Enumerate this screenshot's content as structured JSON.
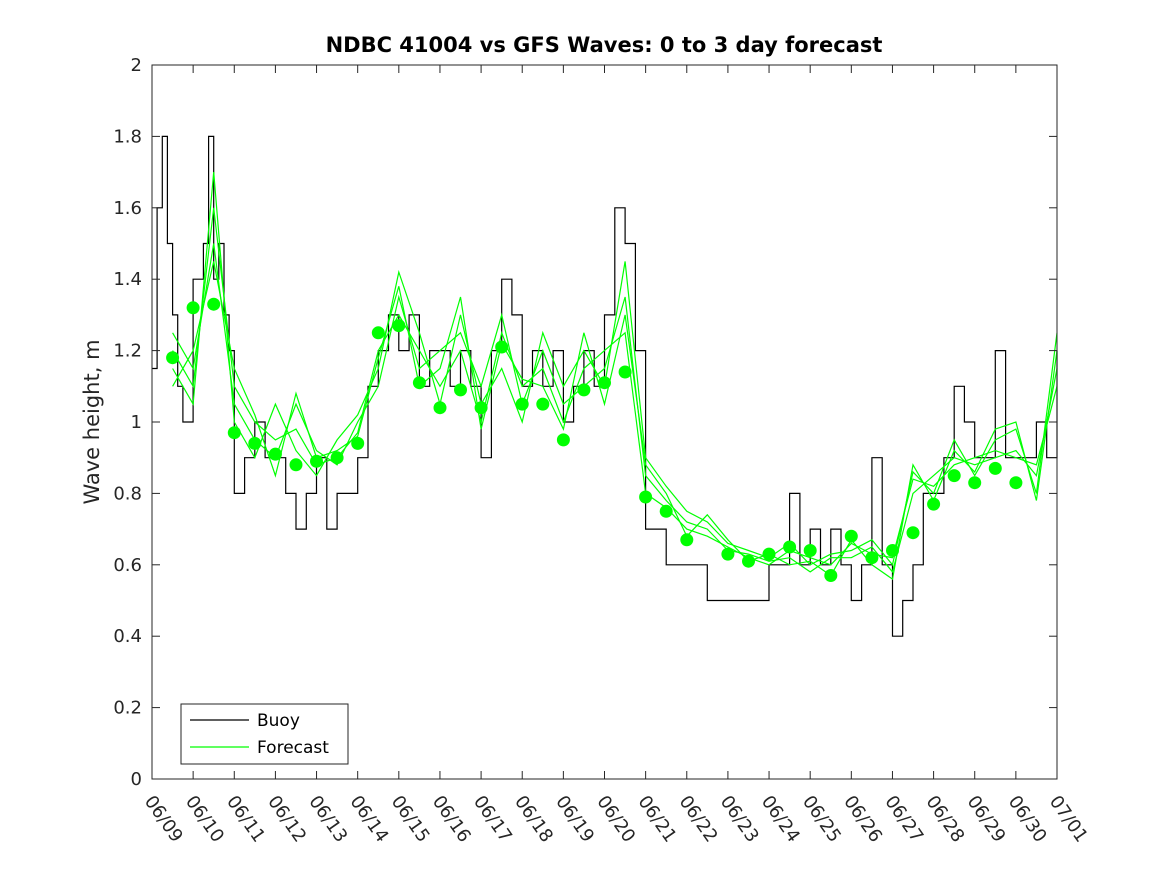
{
  "chart_data": {
    "type": "line",
    "title": "NDBC 41004 vs GFS Waves: 0 to 3 day forecast",
    "xlabel": "",
    "ylabel": "Wave height, m",
    "xlim": [
      "06/09",
      "07/01"
    ],
    "ylim": [
      0,
      2
    ],
    "x_tick_labels": [
      "06/09",
      "06/10",
      "06/11",
      "06/12",
      "06/13",
      "06/14",
      "06/15",
      "06/16",
      "06/17",
      "06/18",
      "06/19",
      "06/20",
      "06/21",
      "06/22",
      "06/23",
      "06/24",
      "06/25",
      "06/26",
      "06/27",
      "06/28",
      "06/29",
      "06/30",
      "07/01"
    ],
    "y_tick_labels": [
      "0",
      "0.2",
      "0.4",
      "0.6",
      "0.8",
      "1",
      "1.2",
      "1.4",
      "1.6",
      "1.8",
      "2"
    ],
    "grid": false,
    "legend": {
      "position": "bottom-left",
      "entries": [
        "Buoy",
        "Forecast"
      ]
    },
    "colors": {
      "buoy": "#000000",
      "forecast": "#00ff00"
    },
    "series": [
      {
        "name": "Buoy",
        "style": "step-line",
        "x": [
          "06/09 00:00",
          "06/09 03:00",
          "06/09 06:00",
          "06/09 09:00",
          "06/09 12:00",
          "06/09 15:00",
          "06/09 18:00",
          "06/10 00:00",
          "06/10 06:00",
          "06/10 09:00",
          "06/10 12:00",
          "06/10 15:00",
          "06/10 18:00",
          "06/10 21:00",
          "06/11 00:00",
          "06/11 06:00",
          "06/11 12:00",
          "06/11 18:00",
          "06/12 00:00",
          "06/12 06:00",
          "06/12 12:00",
          "06/12 18:00",
          "06/13 00:00",
          "06/13 06:00",
          "06/13 12:00",
          "06/13 18:00",
          "06/14 00:00",
          "06/14 06:00",
          "06/14 12:00",
          "06/14 18:00",
          "06/15 00:00",
          "06/15 06:00",
          "06/15 12:00",
          "06/15 18:00",
          "06/16 00:00",
          "06/16 06:00",
          "06/16 12:00",
          "06/16 18:00",
          "06/17 00:00",
          "06/17 06:00",
          "06/17 12:00",
          "06/17 18:00",
          "06/18 00:00",
          "06/18 06:00",
          "06/18 12:00",
          "06/18 18:00",
          "06/19 00:00",
          "06/19 06:00",
          "06/19 12:00",
          "06/19 18:00",
          "06/20 00:00",
          "06/20 06:00",
          "06/20 12:00",
          "06/20 18:00",
          "06/21 00:00",
          "06/21 06:00",
          "06/21 12:00",
          "06/21 18:00",
          "06/22 00:00",
          "06/22 06:00",
          "06/22 12:00",
          "06/22 18:00",
          "06/23 00:00",
          "06/23 06:00",
          "06/23 12:00",
          "06/23 18:00",
          "06/24 00:00",
          "06/24 06:00",
          "06/24 12:00",
          "06/24 18:00",
          "06/25 00:00",
          "06/25 06:00",
          "06/25 12:00",
          "06/25 18:00",
          "06/26 00:00",
          "06/26 06:00",
          "06/26 12:00",
          "06/26 18:00",
          "06/27 00:00",
          "06/27 06:00",
          "06/27 12:00",
          "06/27 18:00",
          "06/28 00:00",
          "06/28 06:00",
          "06/28 12:00",
          "06/28 18:00",
          "06/29 00:00",
          "06/29 06:00",
          "06/29 12:00",
          "06/29 18:00",
          "06/30 00:00",
          "06/30 06:00",
          "06/30 12:00",
          "06/30 18:00",
          "07/01 00:00"
        ],
        "values": [
          1.15,
          1.6,
          1.8,
          1.5,
          1.3,
          1.1,
          1.0,
          1.4,
          1.5,
          1.8,
          1.4,
          1.5,
          1.3,
          1.2,
          0.8,
          0.9,
          1.0,
          0.9,
          0.9,
          0.8,
          0.7,
          0.8,
          0.9,
          0.7,
          0.8,
          0.8,
          0.9,
          1.1,
          1.2,
          1.3,
          1.2,
          1.3,
          1.1,
          1.2,
          1.2,
          1.1,
          1.2,
          1.1,
          0.9,
          1.2,
          1.4,
          1.3,
          1.1,
          1.2,
          1.1,
          1.2,
          1.0,
          1.1,
          1.2,
          1.1,
          1.3,
          1.6,
          1.5,
          1.2,
          0.7,
          0.7,
          0.6,
          0.6,
          0.6,
          0.6,
          0.5,
          0.5,
          0.5,
          0.5,
          0.5,
          0.5,
          0.6,
          0.6,
          0.8,
          0.6,
          0.7,
          0.6,
          0.7,
          0.6,
          0.5,
          0.6,
          0.9,
          0.6,
          0.4,
          0.5,
          0.6,
          0.8,
          0.8,
          0.9,
          1.1,
          1.0,
          0.9,
          0.9,
          1.2,
          0.9,
          0.9,
          0.9,
          1.0,
          0.9,
          1.2
        ]
      },
      {
        "name": "Forecast",
        "style": "markers",
        "x": [
          "06/09 12:00",
          "06/10 00:00",
          "06/10 12:00",
          "06/11 00:00",
          "06/11 12:00",
          "06/12 00:00",
          "06/12 12:00",
          "06/13 00:00",
          "06/13 12:00",
          "06/14 00:00",
          "06/14 12:00",
          "06/15 00:00",
          "06/15 12:00",
          "06/16 00:00",
          "06/16 12:00",
          "06/17 00:00",
          "06/17 12:00",
          "06/18 00:00",
          "06/18 12:00",
          "06/19 00:00",
          "06/19 12:00",
          "06/20 00:00",
          "06/20 12:00",
          "06/21 00:00",
          "06/21 12:00",
          "06/22 00:00",
          "06/23 00:00",
          "06/23 12:00",
          "06/24 00:00",
          "06/24 12:00",
          "06/25 00:00",
          "06/25 12:00",
          "06/26 00:00",
          "06/26 12:00",
          "06/27 00:00",
          "06/27 12:00",
          "06/28 00:00",
          "06/28 12:00",
          "06/29 00:00",
          "06/29 12:00",
          "06/30 00:00"
        ],
        "values": [
          1.18,
          1.32,
          1.33,
          0.97,
          0.94,
          0.91,
          0.88,
          0.89,
          0.9,
          0.94,
          1.25,
          1.27,
          1.11,
          1.04,
          1.09,
          1.04,
          1.21,
          1.05,
          1.05,
          0.95,
          1.09,
          1.11,
          1.14,
          0.79,
          0.75,
          0.67,
          0.63,
          0.61,
          0.63,
          0.65,
          0.64,
          0.57,
          0.68,
          0.62,
          0.64,
          0.69,
          0.77,
          0.85,
          0.83,
          0.87,
          0.83
        ]
      },
      {
        "name": "Forecast",
        "style": "line",
        "x": [
          "06/09 12:00",
          "06/10 00:00",
          "06/10 12:00",
          "06/11 00:00",
          "06/11 12:00",
          "06/12 00:00",
          "06/12 12:00",
          "06/13 00:00",
          "06/13 12:00",
          "06/14 00:00",
          "06/14 12:00",
          "06/15 00:00",
          "06/15 12:00",
          "06/16 00:00",
          "06/16 12:00",
          "06/17 00:00",
          "06/17 12:00",
          "06/18 00:00",
          "06/18 12:00",
          "06/19 00:00",
          "06/19 12:00",
          "06/20 00:00",
          "06/20 12:00",
          "06/21 00:00",
          "06/21 12:00",
          "06/22 00:00",
          "06/22 12:00",
          "06/23 00:00",
          "06/23 12:00",
          "06/24 00:00",
          "06/24 12:00",
          "06/25 00:00",
          "06/25 12:00",
          "06/26 00:00",
          "06/26 12:00",
          "06/27 00:00",
          "06/27 12:00",
          "06/28 00:00",
          "06/28 12:00",
          "06/29 00:00",
          "06/29 12:00",
          "06/30 00:00",
          "06/30 12:00",
          "07/01 00:00"
        ],
        "values": [
          1.2,
          1.1,
          1.6,
          1.1,
          1.0,
          0.95,
          0.98,
          0.88,
          0.9,
          0.97,
          1.2,
          1.3,
          1.2,
          1.1,
          1.2,
          1.0,
          1.25,
          1.1,
          1.15,
          1.0,
          1.15,
          1.2,
          1.25,
          0.8,
          0.76,
          0.7,
          0.68,
          0.65,
          0.62,
          0.6,
          0.64,
          0.62,
          0.6,
          0.66,
          0.63,
          0.62,
          0.84,
          0.82,
          0.88,
          0.9,
          0.92,
          0.9,
          0.88,
          1.1
        ]
      },
      {
        "name": "Forecast",
        "style": "line",
        "x": [
          "06/09 12:00",
          "06/10 00:00",
          "06/10 12:00",
          "06/11 00:00",
          "06/11 12:00",
          "06/12 00:00",
          "06/12 12:00",
          "06/13 00:00",
          "06/13 12:00",
          "06/14 00:00",
          "06/14 12:00",
          "06/15 00:00",
          "06/15 12:00",
          "06/16 00:00",
          "06/16 12:00",
          "06/17 00:00",
          "06/17 12:00",
          "06/18 00:00",
          "06/18 12:00",
          "06/19 00:00",
          "06/19 12:00",
          "06/20 00:00",
          "06/20 12:00",
          "06/21 00:00",
          "06/21 12:00",
          "06/22 00:00",
          "06/22 12:00",
          "06/23 00:00",
          "06/23 12:00",
          "06/24 00:00",
          "06/24 12:00",
          "06/25 00:00",
          "06/25 12:00",
          "06/26 00:00",
          "06/26 12:00",
          "06/27 00:00",
          "06/27 12:00",
          "06/28 00:00",
          "06/28 12:00",
          "06/29 00:00",
          "06/29 12:00",
          "06/30 00:00",
          "06/30 12:00",
          "07/01 00:00"
        ],
        "values": [
          1.15,
          1.05,
          1.7,
          1.0,
          0.9,
          1.05,
          0.92,
          0.85,
          0.95,
          1.02,
          1.15,
          1.42,
          1.25,
          1.05,
          1.3,
          1.05,
          1.15,
          1.0,
          1.25,
          1.1,
          1.2,
          1.1,
          1.45,
          0.9,
          0.82,
          0.75,
          0.72,
          0.66,
          0.64,
          0.62,
          0.66,
          0.6,
          0.63,
          0.64,
          0.67,
          0.6,
          0.86,
          0.8,
          0.95,
          0.85,
          0.95,
          0.98,
          0.8,
          1.25
        ]
      },
      {
        "name": "Forecast",
        "style": "line",
        "x": [
          "06/09 12:00",
          "06/10 00:00",
          "06/10 12:00",
          "06/11 00:00",
          "06/11 12:00",
          "06/12 00:00",
          "06/12 12:00",
          "06/13 00:00",
          "06/13 12:00",
          "06/14 00:00",
          "06/14 12:00",
          "06/15 00:00",
          "06/15 12:00",
          "06/16 00:00",
          "06/16 12:00",
          "06/17 00:00",
          "06/17 12:00",
          "06/18 00:00",
          "06/18 12:00",
          "06/19 00:00",
          "06/19 12:00",
          "06/20 00:00",
          "06/20 12:00",
          "06/21 00:00",
          "06/21 12:00",
          "06/22 00:00",
          "06/22 12:00",
          "06/23 00:00",
          "06/23 12:00",
          "06/24 00:00",
          "06/24 12:00",
          "06/25 00:00",
          "06/25 12:00",
          "06/26 00:00",
          "06/26 12:00",
          "06/27 00:00",
          "06/27 12:00",
          "06/28 00:00",
          "06/28 12:00",
          "06/29 00:00",
          "06/29 12:00",
          "06/30 00:00",
          "06/30 12:00",
          "07/01 00:00"
        ],
        "values": [
          1.25,
          1.15,
          1.5,
          1.05,
          0.95,
          0.9,
          1.05,
          0.92,
          0.88,
          1.0,
          1.1,
          1.35,
          1.15,
          1.2,
          1.25,
          1.1,
          1.3,
          1.05,
          1.2,
          1.05,
          1.1,
          1.15,
          1.35,
          0.85,
          0.78,
          0.72,
          0.7,
          0.64,
          0.63,
          0.61,
          0.62,
          0.58,
          0.62,
          0.62,
          0.65,
          0.58,
          0.8,
          0.85,
          0.9,
          0.88,
          0.9,
          0.92,
          0.85,
          1.15
        ]
      },
      {
        "name": "Forecast",
        "style": "line",
        "x": [
          "06/09 12:00",
          "06/10 00:00",
          "06/10 12:00",
          "06/11 00:00",
          "06/11 12:00",
          "06/12 00:00",
          "06/12 12:00",
          "06/13 00:00",
          "06/13 12:00",
          "06/14 00:00",
          "06/14 12:00",
          "06/15 00:00",
          "06/15 12:00",
          "06/16 00:00",
          "06/16 12:00",
          "06/17 00:00",
          "06/17 12:00",
          "06/18 00:00",
          "06/18 12:00",
          "06/19 00:00",
          "06/19 12:00",
          "06/20 00:00",
          "06/20 12:00",
          "06/21 00:00",
          "06/21 12:00",
          "06/22 00:00",
          "06/22 12:00",
          "06/23 00:00",
          "06/23 12:00",
          "06/24 00:00",
          "06/24 12:00",
          "06/25 00:00",
          "06/25 12:00",
          "06/26 00:00",
          "06/26 12:00",
          "06/27 00:00",
          "06/27 12:00",
          "06/28 00:00",
          "06/28 12:00",
          "06/29 00:00",
          "06/29 12:00",
          "06/30 00:00",
          "06/30 12:00",
          "07/01 00:00"
        ],
        "values": [
          1.1,
          1.2,
          1.45,
          1.15,
          1.02,
          0.85,
          1.08,
          0.9,
          0.92,
          0.96,
          1.18,
          1.38,
          1.1,
          1.15,
          1.35,
          0.98,
          1.22,
          1.12,
          1.1,
          0.98,
          1.25,
          1.05,
          1.3,
          0.88,
          0.8,
          0.68,
          0.74,
          0.67,
          0.61,
          0.63,
          0.6,
          0.61,
          0.57,
          0.67,
          0.6,
          0.56,
          0.88,
          0.78,
          0.92,
          0.86,
          0.98,
          1.0,
          0.78,
          1.2
        ]
      }
    ]
  }
}
